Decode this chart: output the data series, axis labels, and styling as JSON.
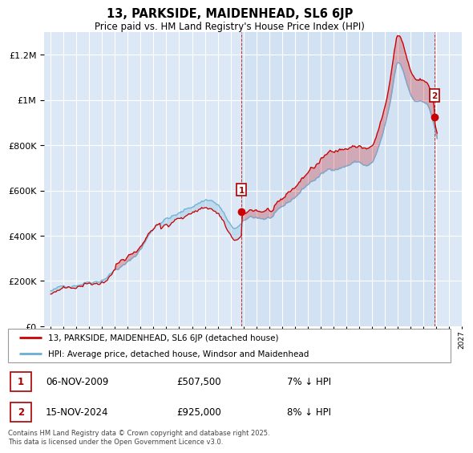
{
  "title": "13, PARKSIDE, MAIDENHEAD, SL6 6JP",
  "subtitle": "Price paid vs. HM Land Registry's House Price Index (HPI)",
  "ylim": [
    0,
    1300000
  ],
  "yticks": [
    0,
    200000,
    400000,
    600000,
    800000,
    1000000,
    1200000
  ],
  "xlim_start": 1994.5,
  "xlim_end": 2027.0,
  "plot_bg": "#dce8f5",
  "grid_color": "#ffffff",
  "hpi_color": "#6aaed6",
  "price_color": "#cc0000",
  "ann1_x": 2009.85,
  "ann1_y": 507500,
  "ann1_date": "06-NOV-2009",
  "ann1_price": "£507,500",
  "ann1_hpi": "7% ↓ HPI",
  "ann2_x": 2024.88,
  "ann2_y": 925000,
  "ann2_date": "15-NOV-2024",
  "ann2_price": "£925,000",
  "ann2_hpi": "8% ↓ HPI",
  "legend_line1": "13, PARKSIDE, MAIDENHEAD, SL6 6JP (detached house)",
  "legend_line2": "HPI: Average price, detached house, Windsor and Maidenhead",
  "footnote": "Contains HM Land Registry data © Crown copyright and database right 2025.\nThis data is licensed under the Open Government Licence v3.0."
}
